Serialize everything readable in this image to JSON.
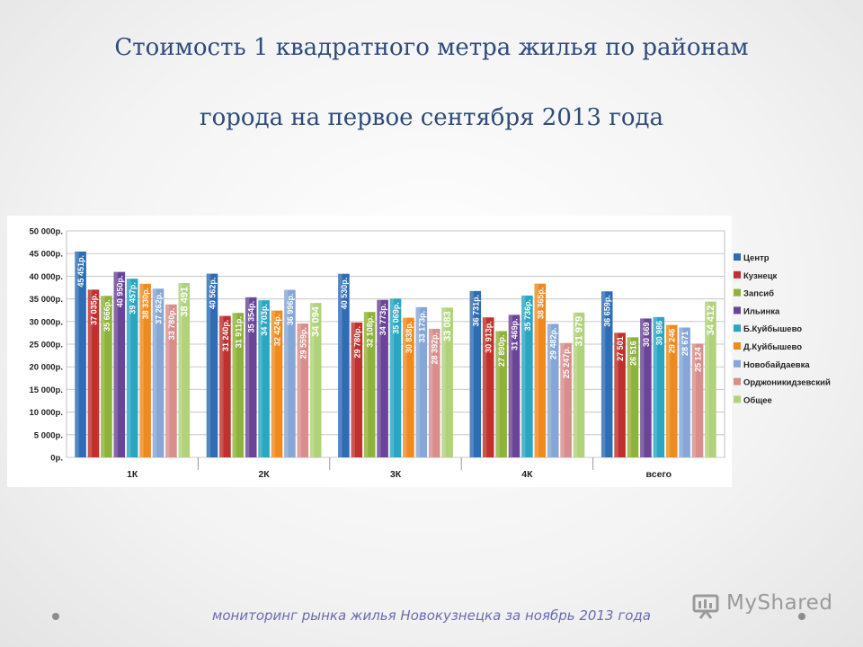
{
  "slide": {
    "title_line1": "Стоимость 1 квадратного метра жилья по районам",
    "title_line2": "города на первое сентября 2013 года",
    "footer": "мониторинг рынка жилья Новокузнецка за ноябрь 2013 года",
    "logo_text": "MyShared"
  },
  "chart_data": {
    "type": "bar",
    "categories": [
      "1К",
      "2К",
      "3К",
      "4К",
      "всего"
    ],
    "ylim": [
      0,
      50000
    ],
    "yticks": [
      "0р.",
      "5 000р.",
      "10 000р.",
      "15 000р.",
      "20 000р.",
      "25 000р.",
      "30 000р.",
      "35 000р.",
      "40 000р.",
      "45 000р.",
      "50 000р."
    ],
    "grid": true,
    "legend_position": "right",
    "series": [
      {
        "name": "Центр",
        "color": "#2e6db4",
        "values": [
          45451,
          40562,
          40530,
          36731,
          36659
        ],
        "labels": [
          "45 451р.",
          "40 562р.",
          "40 530р.",
          "36 731р.",
          "36 659р."
        ]
      },
      {
        "name": "Кузнецк",
        "color": "#c0302e",
        "values": [
          37035,
          31240,
          29780,
          30913,
          27501
        ],
        "labels": [
          "37 035р.",
          "31 240р.",
          "29 780р.",
          "30 913р.",
          "27 501"
        ]
      },
      {
        "name": "Запсиб",
        "color": "#8eb33a",
        "values": [
          35666,
          31911,
          32108,
          27890,
          26516
        ],
        "labels": [
          "35 666р.",
          "31 911р.",
          "32 108р.",
          "27 890р.",
          "26 516"
        ]
      },
      {
        "name": "Ильинка",
        "color": "#6a4597",
        "values": [
          40950,
          35354,
          34773,
          31469,
          30669
        ],
        "labels": [
          "40 950р.",
          "35 354р.",
          "34 773р.",
          "31 469р.",
          "30 669"
        ]
      },
      {
        "name": "Б.Куйбышево",
        "color": "#2aa6c2",
        "values": [
          39457,
          34703,
          35069,
          35736,
          30986
        ],
        "labels": [
          "39 457р.",
          "34 703р.",
          "35 069р.",
          "35 736р.",
          "30 986"
        ]
      },
      {
        "name": "Д.Куйбышево",
        "color": "#f08a1e",
        "values": [
          38330,
          32424,
          30838,
          38365,
          29246
        ],
        "labels": [
          "38 330р.",
          "32 424р.",
          "30 838р.",
          "38 365р.",
          "29 246"
        ]
      },
      {
        "name": "Новобайдаевка",
        "color": "#85a6d6",
        "values": [
          37262,
          36996,
          33173,
          29482,
          28671
        ],
        "labels": [
          "37 262р.",
          "36 996р.",
          "33 173р.",
          "29 482р.",
          "28 671"
        ]
      },
      {
        "name": "Орджоникидзевский",
        "color": "#d98e8c",
        "values": [
          33780,
          29559,
          28392,
          25247,
          25124
        ],
        "labels": [
          "33 780р.",
          "29 559р.",
          "28 392р.",
          "25 247р.",
          "25 124"
        ]
      },
      {
        "name": "Общее",
        "color": "#b0d27b",
        "values": [
          38491,
          34094,
          33083,
          31979,
          34412
        ],
        "labels": [
          "38 491",
          "34 094",
          "33 083",
          "31 979",
          "34 412"
        ]
      }
    ]
  }
}
